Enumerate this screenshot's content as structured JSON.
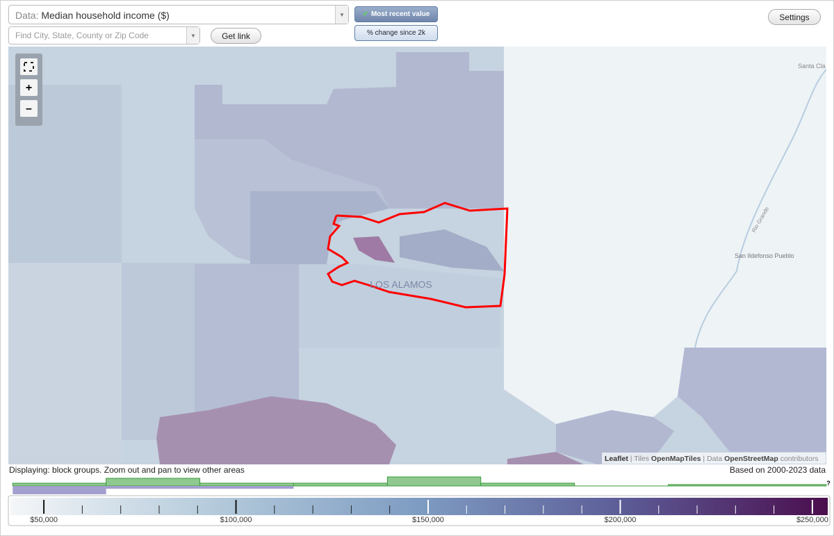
{
  "controls": {
    "data_label": "Data:",
    "data_value": "Median household income ($)",
    "search_placeholder": "Find City, State, County or Zip Code",
    "get_link": "Get link",
    "most_recent": "Most recent value",
    "pct_change": "% change since 2k",
    "settings": "Settings"
  },
  "map": {
    "place_label": "LOS ALAMOS",
    "labels": [
      "Santa Cla",
      "San Ildefonso Pueblo",
      "Rio Grande"
    ],
    "attribution": [
      "Leaflet",
      "| Tiles",
      "OpenMapTiles",
      "| Data",
      "OpenStreetMap",
      "contributors"
    ]
  },
  "status": {
    "left": "Displaying: block groups. Zoom out and pan to view other areas",
    "right": "Based on 2000-2023 data",
    "help": "?"
  },
  "legend": {
    "xlim": [
      41300,
      254000
    ],
    "ticks": [
      {
        "value": 50000,
        "label": "$50,000"
      },
      {
        "value": 100000,
        "label": "$100,000"
      },
      {
        "value": 150000,
        "label": "$150,000"
      },
      {
        "value": 200000,
        "label": "$200,000"
      },
      {
        "value": 250000,
        "label": "$250,000"
      }
    ],
    "minor_ticks": [
      60000,
      70000,
      80000,
      90000,
      110000,
      120000,
      130000,
      140000,
      160000,
      170000,
      180000,
      190000,
      210000,
      220000,
      230000,
      240000
    ],
    "histogram": {
      "bins": [
        41900,
        66200,
        90600,
        115000,
        139400,
        163700,
        188100,
        212500,
        253600
      ],
      "series": [
        {
          "name": "area",
          "color": "#8fc98f",
          "values": [
            4,
            11,
            4,
            4,
            13,
            4,
            0,
            2
          ]
        },
        {
          "name": "selected",
          "color": "#a39fcf",
          "values": [
            12,
            4,
            4,
            0,
            0,
            0,
            0,
            0
          ]
        }
      ]
    }
  }
}
